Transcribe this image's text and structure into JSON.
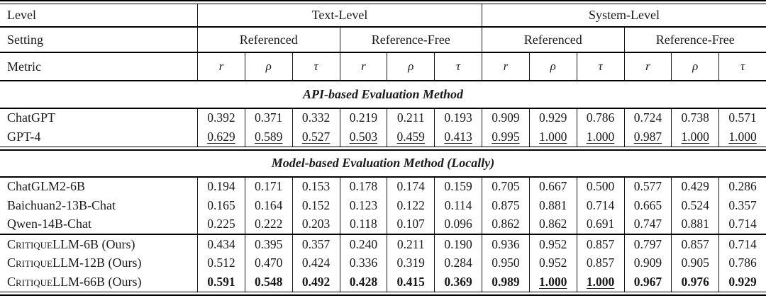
{
  "colors": {
    "background": "#ffffff",
    "text": "#1a1a1a",
    "rule": "#000000"
  },
  "table": {
    "header": {
      "level_label": "Level",
      "level_groups": [
        "Text-Level",
        "System-Level"
      ],
      "setting_label": "Setting",
      "settings": [
        "Referenced",
        "Reference-Free",
        "Referenced",
        "Reference-Free"
      ],
      "metric_label": "Metric",
      "metrics": [
        "r",
        "ρ",
        "τ",
        "r",
        "ρ",
        "τ",
        "r",
        "ρ",
        "τ",
        "r",
        "ρ",
        "τ"
      ]
    },
    "sections": [
      {
        "title": "API-based Evaluation Method",
        "groups": [
          {
            "rows": [
              {
                "name": "ChatGPT",
                "values": [
                  "0.392",
                  "0.371",
                  "0.332",
                  "0.219",
                  "0.211",
                  "0.193",
                  "0.909",
                  "0.929",
                  "0.786",
                  "0.724",
                  "0.738",
                  "0.571"
                ]
              },
              {
                "name": "GPT-4",
                "underline": "all",
                "values": [
                  "0.629",
                  "0.589",
                  "0.527",
                  "0.503",
                  "0.459",
                  "0.413",
                  "0.995",
                  "1.000",
                  "1.000",
                  "0.987",
                  "1.000",
                  "1.000"
                ]
              }
            ]
          }
        ]
      },
      {
        "title": "Model-based Evaluation Method (Locally)",
        "groups": [
          {
            "rows": [
              {
                "name": "ChatGLM2-6B",
                "values": [
                  "0.194",
                  "0.171",
                  "0.153",
                  "0.178",
                  "0.174",
                  "0.159",
                  "0.705",
                  "0.667",
                  "0.500",
                  "0.577",
                  "0.429",
                  "0.286"
                ]
              },
              {
                "name": "Baichuan2-13B-Chat",
                "values": [
                  "0.165",
                  "0.164",
                  "0.152",
                  "0.123",
                  "0.122",
                  "0.114",
                  "0.875",
                  "0.881",
                  "0.714",
                  "0.665",
                  "0.524",
                  "0.357"
                ]
              },
              {
                "name": "Qwen-14B-Chat",
                "values": [
                  "0.225",
                  "0.222",
                  "0.203",
                  "0.118",
                  "0.107",
                  "0.096",
                  "0.862",
                  "0.862",
                  "0.691",
                  "0.747",
                  "0.881",
                  "0.714"
                ]
              }
            ]
          },
          {
            "rows": [
              {
                "name_parts": {
                  "sc": "Critique",
                  "rest": "LLM-6B (Ours)"
                },
                "values": [
                  "0.434",
                  "0.395",
                  "0.357",
                  "0.240",
                  "0.211",
                  "0.190",
                  "0.936",
                  "0.952",
                  "0.857",
                  "0.797",
                  "0.857",
                  "0.714"
                ]
              },
              {
                "name_parts": {
                  "sc": "Critique",
                  "rest": "LLM-12B (Ours)"
                },
                "values": [
                  "0.512",
                  "0.470",
                  "0.424",
                  "0.336",
                  "0.319",
                  "0.284",
                  "0.950",
                  "0.952",
                  "0.857",
                  "0.909",
                  "0.905",
                  "0.786"
                ]
              },
              {
                "name_parts": {
                  "sc": "Critique",
                  "rest": "LLM-66B (Ours)"
                },
                "bold": "all",
                "underline": [
                  7,
                  8
                ],
                "values": [
                  "0.591",
                  "0.548",
                  "0.492",
                  "0.428",
                  "0.415",
                  "0.369",
                  "0.989",
                  "1.000",
                  "1.000",
                  "0.967",
                  "0.976",
                  "0.929"
                ]
              }
            ]
          }
        ]
      }
    ]
  }
}
